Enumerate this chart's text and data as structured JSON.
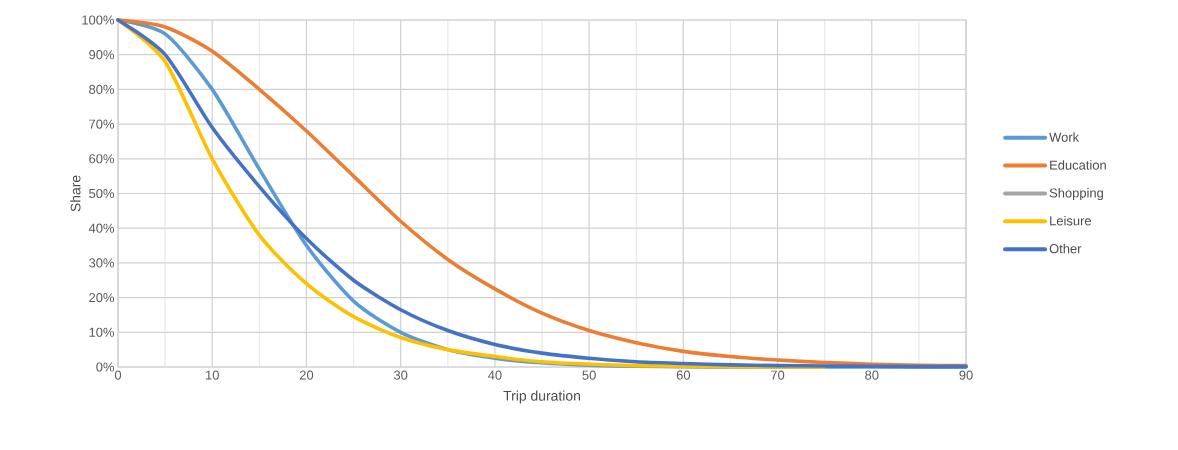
{
  "chart_data": {
    "type": "line",
    "xlabel": "Trip duration",
    "ylabel": "Share",
    "x": [
      0,
      5,
      10,
      15,
      20,
      25,
      30,
      35,
      40,
      45,
      50,
      55,
      60,
      65,
      70,
      75,
      80,
      85,
      90
    ],
    "xlim": [
      0,
      90
    ],
    "xticks": [
      0,
      10,
      20,
      30,
      40,
      50,
      60,
      70,
      80,
      90
    ],
    "ylim": [
      0,
      100
    ],
    "yticks": [
      {
        "value": 0,
        "label": "0%"
      },
      {
        "value": 10,
        "label": "10%"
      },
      {
        "value": 20,
        "label": "20%"
      },
      {
        "value": 30,
        "label": "30%"
      },
      {
        "value": 40,
        "label": "40%"
      },
      {
        "value": 50,
        "label": "50%"
      },
      {
        "value": 60,
        "label": "60%"
      },
      {
        "value": 70,
        "label": "70%"
      },
      {
        "value": 80,
        "label": "80%"
      },
      {
        "value": 90,
        "label": "90%"
      },
      {
        "value": 100,
        "label": "100%"
      }
    ],
    "grid": true,
    "legend": "right",
    "marker": "none",
    "line_style": "solid",
    "series": [
      {
        "name": "Work",
        "color": "#5b9bd5",
        "values": [
          100,
          96,
          80,
          57,
          35,
          19,
          10,
          5,
          2.5,
          1.2,
          0.5,
          0.2,
          0.1,
          0,
          0,
          0,
          0,
          0,
          0
        ]
      },
      {
        "name": "Education",
        "color": "#ed7d31",
        "values": [
          100,
          98,
          91,
          80,
          68,
          55,
          42,
          31,
          22.5,
          15.5,
          10.5,
          7,
          4.5,
          3,
          2,
          1.3,
          0.8,
          0.5,
          0.4
        ]
      },
      {
        "name": "Shopping",
        "color": "#a5a5a5",
        "values": [
          null,
          null,
          null,
          null,
          null,
          null,
          null,
          null,
          null,
          null,
          null,
          null,
          null,
          null,
          null,
          null,
          null,
          null,
          null
        ]
      },
      {
        "name": "Leisure",
        "color": "#ffc000",
        "values": [
          100,
          88,
          60,
          38,
          24,
          14.5,
          8.5,
          5,
          3,
          1.5,
          0.8,
          0.4,
          0.2,
          0.1,
          0,
          0,
          null,
          null,
          null
        ]
      },
      {
        "name": "Other",
        "color": "#4472c4",
        "values": [
          100,
          90,
          69,
          52,
          37,
          25,
          16.5,
          10.5,
          6.5,
          4,
          2.5,
          1.5,
          1,
          0.6,
          0.4,
          0.3,
          0.2,
          0.1,
          0.1
        ]
      }
    ]
  }
}
